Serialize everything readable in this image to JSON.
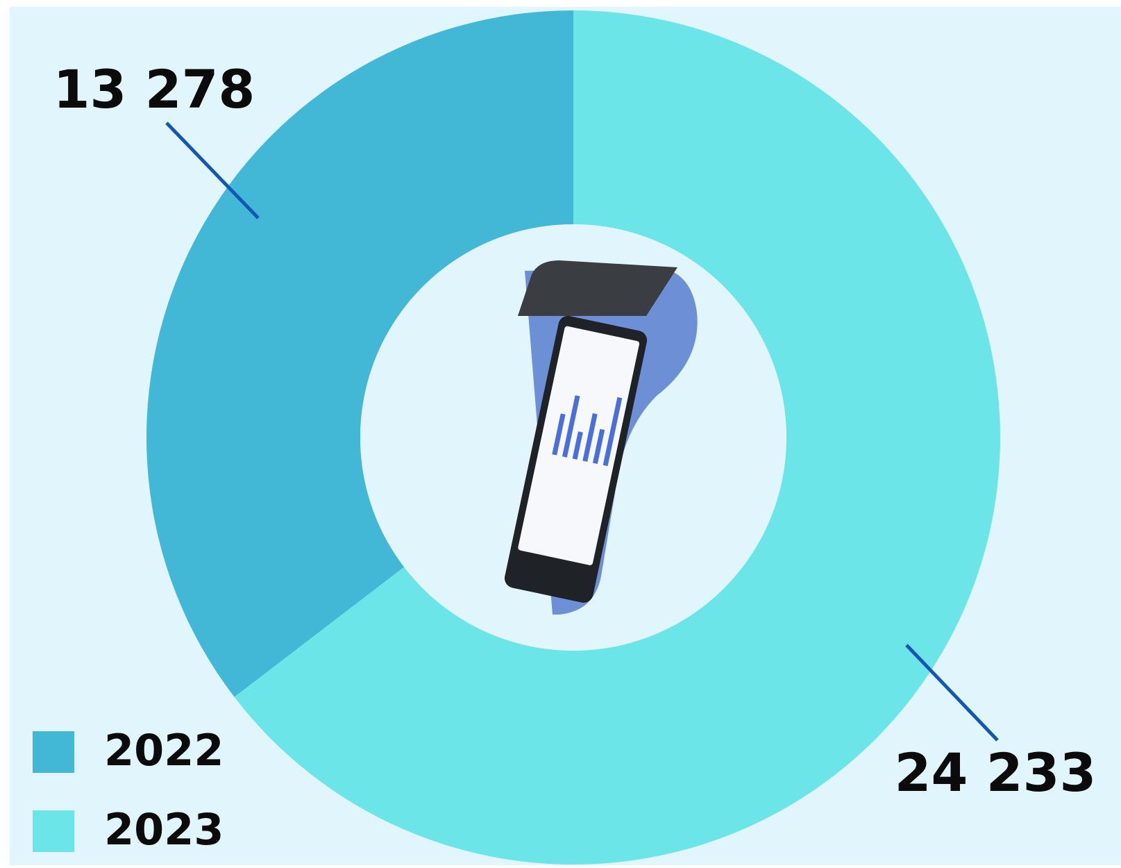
{
  "chart_data": {
    "type": "pie",
    "categories": [
      "2022",
      "2023"
    ],
    "values": [
      13278,
      24233
    ],
    "value_labels": [
      "13 278",
      "24 233"
    ],
    "colors": [
      "#43b8d6",
      "#6ce5e8"
    ]
  }
}
